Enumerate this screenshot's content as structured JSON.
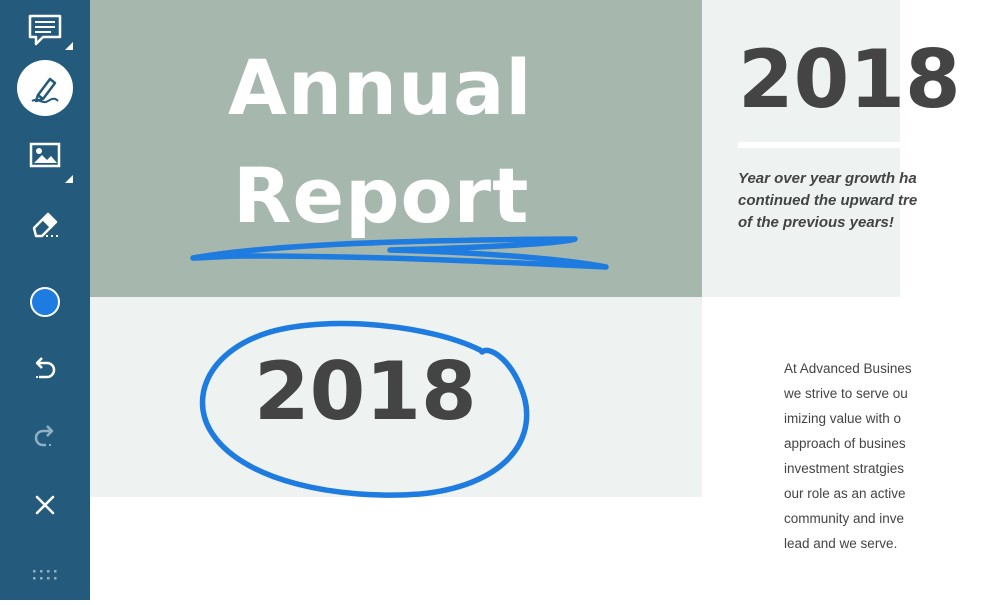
{
  "toolbar": {
    "tools": [
      {
        "name": "comment-tool",
        "icon": "comment-icon",
        "has_submenu": true
      },
      {
        "name": "pen-tool",
        "icon": "pen-icon",
        "active": true
      },
      {
        "name": "image-tool",
        "icon": "image-icon",
        "has_submenu": true
      },
      {
        "name": "eraser-tool",
        "icon": "eraser-icon"
      },
      {
        "name": "color-picker",
        "icon": "color-dot-icon",
        "color": "#1e7be0"
      },
      {
        "name": "undo",
        "icon": "undo-icon"
      },
      {
        "name": "redo",
        "icon": "redo-icon",
        "disabled": true
      },
      {
        "name": "close",
        "icon": "close-icon"
      },
      {
        "name": "drag-handle",
        "icon": "grip-dots-icon"
      }
    ],
    "background": "#245a7b"
  },
  "document": {
    "title_line1": "Annual",
    "title_line2": "Report",
    "year_right": "2018",
    "year_center": "2018",
    "growth_lines": [
      "Year over year growth ha",
      "continued the upward tre",
      "of the previous years!"
    ],
    "body_lines": [
      "At Advanced Busines",
      "we strive to serve ou",
      "imizing value with o",
      "approach of busines",
      "investment stratgies",
      "our role as an active",
      "community and inve",
      "lead and we serve."
    ],
    "colors": {
      "title_block": "#a6b8ad",
      "light_block": "#eef2f1",
      "text_dark": "#444444",
      "ink": "#1e7be0"
    }
  }
}
